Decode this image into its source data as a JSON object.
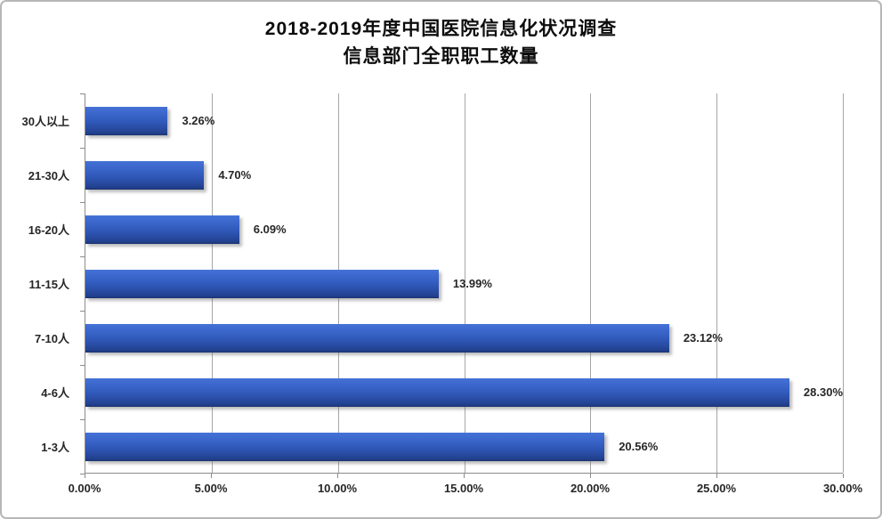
{
  "chart_data": {
    "type": "bar",
    "orientation": "horizontal",
    "title_line1": "2018-2019年度中国医院信息化状况调查",
    "title_line2": "信息部门全职职工数量",
    "categories": [
      "30人以上",
      "21-30人",
      "16-20人",
      "11-15人",
      "7-10人",
      "4-6人",
      "1-3人"
    ],
    "values": [
      3.26,
      4.7,
      6.09,
      13.99,
      23.12,
      28.3,
      20.56
    ],
    "value_labels": [
      "3.26%",
      "4.70%",
      "6.09%",
      "13.99%",
      "23.12%",
      "28.30%",
      "20.56%"
    ],
    "x_tick_labels": [
      "0.00%",
      "5.00%",
      "10.00%",
      "15.00%",
      "20.00%",
      "25.00%",
      "30.00%"
    ],
    "xlim": [
      0,
      30
    ],
    "grid": "vertical-major",
    "legend": "none",
    "bar_color_top": "#4572d6",
    "bar_color_bottom": "#1b346f",
    "gridline_color": "#a6a6a6",
    "axis_color": "#8c8c8c",
    "text_color": "#262626"
  }
}
